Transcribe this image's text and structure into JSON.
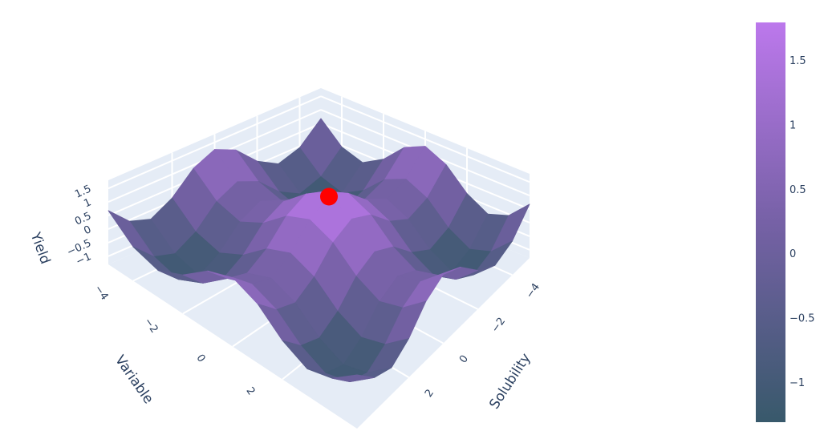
{
  "chart_data": {
    "type": "surface",
    "x_title": "Solubility",
    "y_title": "Variable",
    "z_title": "Yield",
    "x": [
      -5,
      -4,
      -3,
      -2,
      -1,
      0,
      1,
      2,
      3,
      4,
      5
    ],
    "y": [
      -5,
      -4,
      -3,
      -2,
      -1,
      0,
      1,
      2,
      3,
      4,
      5
    ],
    "z": [
      [
        0.68,
        -0.05,
        -0.31,
        0.13,
        0.88,
        1.24,
        0.88,
        0.13,
        -0.31,
        -0.05,
        0.68
      ],
      [
        -0.05,
        -0.78,
        -1.04,
        -0.6,
        0.15,
        0.51,
        0.15,
        -0.6,
        -1.04,
        -0.78,
        -0.05
      ],
      [
        -0.31,
        -1.04,
        -1.3,
        -0.86,
        -0.11,
        0.25,
        -0.11,
        -0.86,
        -1.3,
        -1.04,
        -0.31
      ],
      [
        0.13,
        -0.6,
        -0.86,
        -0.42,
        0.33,
        0.69,
        0.33,
        -0.42,
        -0.86,
        -0.6,
        0.13
      ],
      [
        0.88,
        0.15,
        -0.11,
        0.33,
        1.08,
        1.44,
        1.08,
        0.33,
        -0.11,
        0.15,
        0.88
      ],
      [
        1.24,
        0.51,
        0.25,
        0.69,
        1.44,
        1.8,
        1.44,
        0.69,
        0.25,
        0.51,
        1.24
      ],
      [
        0.88,
        0.15,
        -0.11,
        0.33,
        1.08,
        1.44,
        1.08,
        0.33,
        -0.11,
        0.15,
        0.88
      ],
      [
        0.13,
        -0.6,
        -0.86,
        -0.42,
        0.33,
        0.69,
        0.33,
        -0.42,
        -0.86,
        -0.6,
        0.13
      ],
      [
        -0.31,
        -1.04,
        -1.3,
        -0.86,
        -0.11,
        0.25,
        -0.11,
        -0.86,
        -1.3,
        -1.04,
        -0.31
      ],
      [
        -0.05,
        -0.78,
        -1.04,
        -0.6,
        0.15,
        0.51,
        0.15,
        -0.6,
        -1.04,
        -0.78,
        -0.05
      ],
      [
        0.68,
        -0.05,
        -0.31,
        0.13,
        0.88,
        1.24,
        0.88,
        0.13,
        -0.31,
        -0.05,
        0.68
      ]
    ],
    "marker": {
      "x": 0,
      "y": 0,
      "z": 1.8,
      "color": "#ff0000"
    },
    "xlim": [
      -5,
      5
    ],
    "ylim": [
      -5,
      5
    ],
    "zlim": [
      -1.3,
      1.8
    ],
    "xticks": [
      {
        "value": -4,
        "label": "−4"
      },
      {
        "value": -2,
        "label": "−2"
      },
      0,
      2
    ],
    "yticks": [
      {
        "value": -4,
        "label": "−4"
      },
      {
        "value": -2,
        "label": "−2"
      },
      0,
      2
    ],
    "zticks": [
      {
        "value": -1,
        "label": "−1"
      },
      {
        "value": -0.5,
        "label": "−0.5"
      },
      0,
      0.5,
      1,
      1.5
    ],
    "colorscale": [
      [
        0,
        "#38596b"
      ],
      [
        0.5,
        "#7661a6"
      ],
      [
        1,
        "#bc78ec"
      ]
    ],
    "clim": [
      -1.3,
      1.8
    ],
    "colorbar_ticks": [
      {
        "value": -1,
        "label": "−1"
      },
      {
        "value": -0.5,
        "label": "−0.5"
      },
      0,
      0.5,
      1,
      1.5
    ]
  }
}
